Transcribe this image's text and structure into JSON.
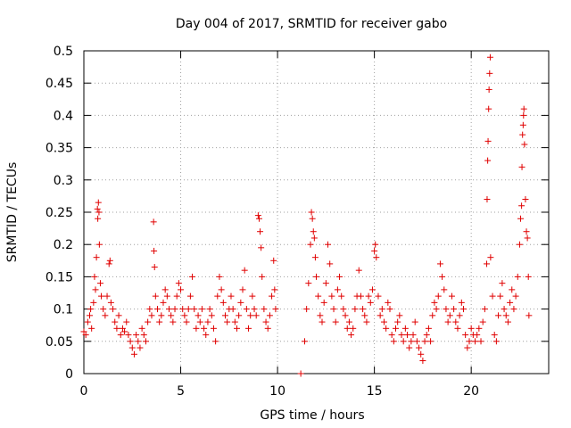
{
  "chart_data": {
    "type": "scatter",
    "title": "Day 004 of 2017, SRMTID for receiver gabo",
    "xlabel": "GPS time / hours",
    "ylabel": "SRMTID / TECUs",
    "xlim": [
      0,
      24
    ],
    "ylim": [
      0,
      0.5
    ],
    "x_ticks": [
      0,
      5,
      10,
      15,
      20
    ],
    "x_tick_labels": [
      "0",
      "5",
      "10",
      "15",
      "20"
    ],
    "y_ticks": [
      0,
      0.05,
      0.1,
      0.15,
      0.2,
      0.25,
      0.3,
      0.35,
      0.4,
      0.45,
      0.5
    ],
    "y_tick_labels": [
      "0",
      "0.05",
      "0.1",
      "0.15",
      "0.2",
      "0.25",
      "0.3",
      "0.35",
      "0.4",
      "0.45",
      "0.5"
    ],
    "grid": true,
    "marker": "plus",
    "color": "#e00000",
    "series": [
      {
        "name": "SRMTID",
        "points": [
          [
            0.0,
            0.065
          ],
          [
            0.1,
            0.06
          ],
          [
            0.2,
            0.08
          ],
          [
            0.3,
            0.09
          ],
          [
            0.35,
            0.1
          ],
          [
            0.4,
            0.07
          ],
          [
            0.5,
            0.11
          ],
          [
            0.55,
            0.15
          ],
          [
            0.6,
            0.13
          ],
          [
            0.65,
            0.18
          ],
          [
            0.7,
            0.255
          ],
          [
            0.72,
            0.24
          ],
          [
            0.75,
            0.265
          ],
          [
            0.78,
            0.25
          ],
          [
            0.8,
            0.2
          ],
          [
            0.85,
            0.14
          ],
          [
            0.9,
            0.12
          ],
          [
            1.0,
            0.1
          ],
          [
            1.1,
            0.09
          ],
          [
            1.2,
            0.12
          ],
          [
            1.3,
            0.17
          ],
          [
            1.35,
            0.175
          ],
          [
            1.4,
            0.11
          ],
          [
            1.5,
            0.1
          ],
          [
            1.6,
            0.08
          ],
          [
            1.7,
            0.07
          ],
          [
            1.8,
            0.09
          ],
          [
            1.9,
            0.06
          ],
          [
            2.0,
            0.07
          ],
          [
            2.1,
            0.065
          ],
          [
            2.2,
            0.08
          ],
          [
            2.3,
            0.06
          ],
          [
            2.4,
            0.05
          ],
          [
            2.5,
            0.04
          ],
          [
            2.6,
            0.03
          ],
          [
            2.7,
            0.06
          ],
          [
            2.8,
            0.05
          ],
          [
            2.9,
            0.04
          ],
          [
            3.0,
            0.07
          ],
          [
            3.1,
            0.06
          ],
          [
            3.2,
            0.05
          ],
          [
            3.3,
            0.08
          ],
          [
            3.4,
            0.1
          ],
          [
            3.5,
            0.09
          ],
          [
            3.6,
            0.235
          ],
          [
            3.62,
            0.19
          ],
          [
            3.65,
            0.165
          ],
          [
            3.7,
            0.12
          ],
          [
            3.8,
            0.1
          ],
          [
            3.9,
            0.08
          ],
          [
            4.0,
            0.09
          ],
          [
            4.1,
            0.11
          ],
          [
            4.2,
            0.13
          ],
          [
            4.3,
            0.12
          ],
          [
            4.4,
            0.1
          ],
          [
            4.5,
            0.09
          ],
          [
            4.6,
            0.08
          ],
          [
            4.7,
            0.1
          ],
          [
            4.8,
            0.12
          ],
          [
            4.9,
            0.14
          ],
          [
            5.0,
            0.13
          ],
          [
            5.1,
            0.1
          ],
          [
            5.2,
            0.09
          ],
          [
            5.3,
            0.08
          ],
          [
            5.4,
            0.1
          ],
          [
            5.5,
            0.12
          ],
          [
            5.6,
            0.15
          ],
          [
            5.7,
            0.1
          ],
          [
            5.8,
            0.07
          ],
          [
            5.9,
            0.09
          ],
          [
            6.0,
            0.08
          ],
          [
            6.1,
            0.1
          ],
          [
            6.2,
            0.07
          ],
          [
            6.3,
            0.06
          ],
          [
            6.4,
            0.08
          ],
          [
            6.5,
            0.1
          ],
          [
            6.6,
            0.09
          ],
          [
            6.7,
            0.07
          ],
          [
            6.8,
            0.05
          ],
          [
            6.9,
            0.12
          ],
          [
            7.0,
            0.15
          ],
          [
            7.1,
            0.13
          ],
          [
            7.2,
            0.11
          ],
          [
            7.3,
            0.09
          ],
          [
            7.4,
            0.08
          ],
          [
            7.5,
            0.1
          ],
          [
            7.6,
            0.12
          ],
          [
            7.7,
            0.1
          ],
          [
            7.8,
            0.08
          ],
          [
            7.9,
            0.07
          ],
          [
            8.0,
            0.09
          ],
          [
            8.1,
            0.11
          ],
          [
            8.2,
            0.13
          ],
          [
            8.3,
            0.16
          ],
          [
            8.4,
            0.1
          ],
          [
            8.5,
            0.07
          ],
          [
            8.6,
            0.09
          ],
          [
            8.7,
            0.12
          ],
          [
            8.8,
            0.1
          ],
          [
            8.9,
            0.09
          ],
          [
            9.0,
            0.245
          ],
          [
            9.05,
            0.24
          ],
          [
            9.1,
            0.22
          ],
          [
            9.15,
            0.195
          ],
          [
            9.2,
            0.15
          ],
          [
            9.3,
            0.1
          ],
          [
            9.4,
            0.08
          ],
          [
            9.5,
            0.07
          ],
          [
            9.6,
            0.09
          ],
          [
            9.7,
            0.12
          ],
          [
            9.8,
            0.175
          ],
          [
            9.85,
            0.13
          ],
          [
            9.9,
            0.1
          ],
          [
            11.2,
            0.0
          ],
          [
            11.4,
            0.05
          ],
          [
            11.5,
            0.1
          ],
          [
            11.6,
            0.14
          ],
          [
            11.7,
            0.2
          ],
          [
            11.75,
            0.25
          ],
          [
            11.8,
            0.24
          ],
          [
            11.85,
            0.22
          ],
          [
            11.9,
            0.21
          ],
          [
            11.95,
            0.18
          ],
          [
            12.0,
            0.15
          ],
          [
            12.1,
            0.12
          ],
          [
            12.2,
            0.09
          ],
          [
            12.3,
            0.08
          ],
          [
            12.4,
            0.11
          ],
          [
            12.5,
            0.14
          ],
          [
            12.6,
            0.2
          ],
          [
            12.7,
            0.17
          ],
          [
            12.8,
            0.12
          ],
          [
            12.9,
            0.1
          ],
          [
            13.0,
            0.08
          ],
          [
            13.1,
            0.13
          ],
          [
            13.2,
            0.15
          ],
          [
            13.3,
            0.12
          ],
          [
            13.4,
            0.1
          ],
          [
            13.5,
            0.09
          ],
          [
            13.6,
            0.07
          ],
          [
            13.7,
            0.08
          ],
          [
            13.8,
            0.06
          ],
          [
            13.9,
            0.07
          ],
          [
            14.0,
            0.1
          ],
          [
            14.1,
            0.12
          ],
          [
            14.2,
            0.16
          ],
          [
            14.3,
            0.12
          ],
          [
            14.4,
            0.1
          ],
          [
            14.5,
            0.09
          ],
          [
            14.6,
            0.08
          ],
          [
            14.7,
            0.12
          ],
          [
            14.8,
            0.11
          ],
          [
            14.9,
            0.13
          ],
          [
            15.0,
            0.19
          ],
          [
            15.05,
            0.2
          ],
          [
            15.1,
            0.18
          ],
          [
            15.2,
            0.12
          ],
          [
            15.3,
            0.09
          ],
          [
            15.4,
            0.1
          ],
          [
            15.5,
            0.08
          ],
          [
            15.6,
            0.07
          ],
          [
            15.7,
            0.11
          ],
          [
            15.8,
            0.1
          ],
          [
            15.9,
            0.06
          ],
          [
            16.0,
            0.05
          ],
          [
            16.1,
            0.07
          ],
          [
            16.2,
            0.08
          ],
          [
            16.3,
            0.09
          ],
          [
            16.4,
            0.06
          ],
          [
            16.5,
            0.05
          ],
          [
            16.6,
            0.07
          ],
          [
            16.7,
            0.06
          ],
          [
            16.8,
            0.04
          ],
          [
            16.9,
            0.05
          ],
          [
            17.0,
            0.06
          ],
          [
            17.1,
            0.08
          ],
          [
            17.2,
            0.05
          ],
          [
            17.3,
            0.04
          ],
          [
            17.4,
            0.03
          ],
          [
            17.5,
            0.02
          ],
          [
            17.6,
            0.05
          ],
          [
            17.7,
            0.06
          ],
          [
            17.8,
            0.07
          ],
          [
            17.9,
            0.05
          ],
          [
            18.0,
            0.09
          ],
          [
            18.1,
            0.11
          ],
          [
            18.2,
            0.1
          ],
          [
            18.3,
            0.12
          ],
          [
            18.4,
            0.17
          ],
          [
            18.5,
            0.15
          ],
          [
            18.6,
            0.13
          ],
          [
            18.7,
            0.1
          ],
          [
            18.8,
            0.08
          ],
          [
            18.9,
            0.09
          ],
          [
            19.0,
            0.12
          ],
          [
            19.1,
            0.1
          ],
          [
            19.2,
            0.08
          ],
          [
            19.3,
            0.07
          ],
          [
            19.4,
            0.09
          ],
          [
            19.5,
            0.11
          ],
          [
            19.6,
            0.1
          ],
          [
            19.7,
            0.06
          ],
          [
            19.8,
            0.04
          ],
          [
            19.9,
            0.05
          ],
          [
            20.0,
            0.07
          ],
          [
            20.1,
            0.06
          ],
          [
            20.2,
            0.05
          ],
          [
            20.3,
            0.06
          ],
          [
            20.4,
            0.07
          ],
          [
            20.5,
            0.05
          ],
          [
            20.6,
            0.08
          ],
          [
            20.7,
            0.1
          ],
          [
            20.8,
            0.17
          ],
          [
            20.82,
            0.27
          ],
          [
            20.85,
            0.33
          ],
          [
            20.87,
            0.36
          ],
          [
            20.9,
            0.41
          ],
          [
            20.92,
            0.44
          ],
          [
            20.95,
            0.465
          ],
          [
            20.98,
            0.49
          ],
          [
            21.0,
            0.18
          ],
          [
            21.1,
            0.12
          ],
          [
            21.2,
            0.06
          ],
          [
            21.3,
            0.05
          ],
          [
            21.4,
            0.09
          ],
          [
            21.5,
            0.12
          ],
          [
            21.6,
            0.14
          ],
          [
            21.7,
            0.1
          ],
          [
            21.8,
            0.09
          ],
          [
            21.9,
            0.08
          ],
          [
            22.0,
            0.11
          ],
          [
            22.1,
            0.13
          ],
          [
            22.2,
            0.1
          ],
          [
            22.3,
            0.12
          ],
          [
            22.4,
            0.15
          ],
          [
            22.5,
            0.2
          ],
          [
            22.55,
            0.24
          ],
          [
            22.6,
            0.26
          ],
          [
            22.62,
            0.32
          ],
          [
            22.65,
            0.37
          ],
          [
            22.68,
            0.385
          ],
          [
            22.7,
            0.4
          ],
          [
            22.72,
            0.41
          ],
          [
            22.75,
            0.355
          ],
          [
            22.8,
            0.27
          ],
          [
            22.85,
            0.22
          ],
          [
            22.9,
            0.21
          ],
          [
            22.95,
            0.15
          ],
          [
            22.98,
            0.09
          ]
        ]
      }
    ]
  }
}
